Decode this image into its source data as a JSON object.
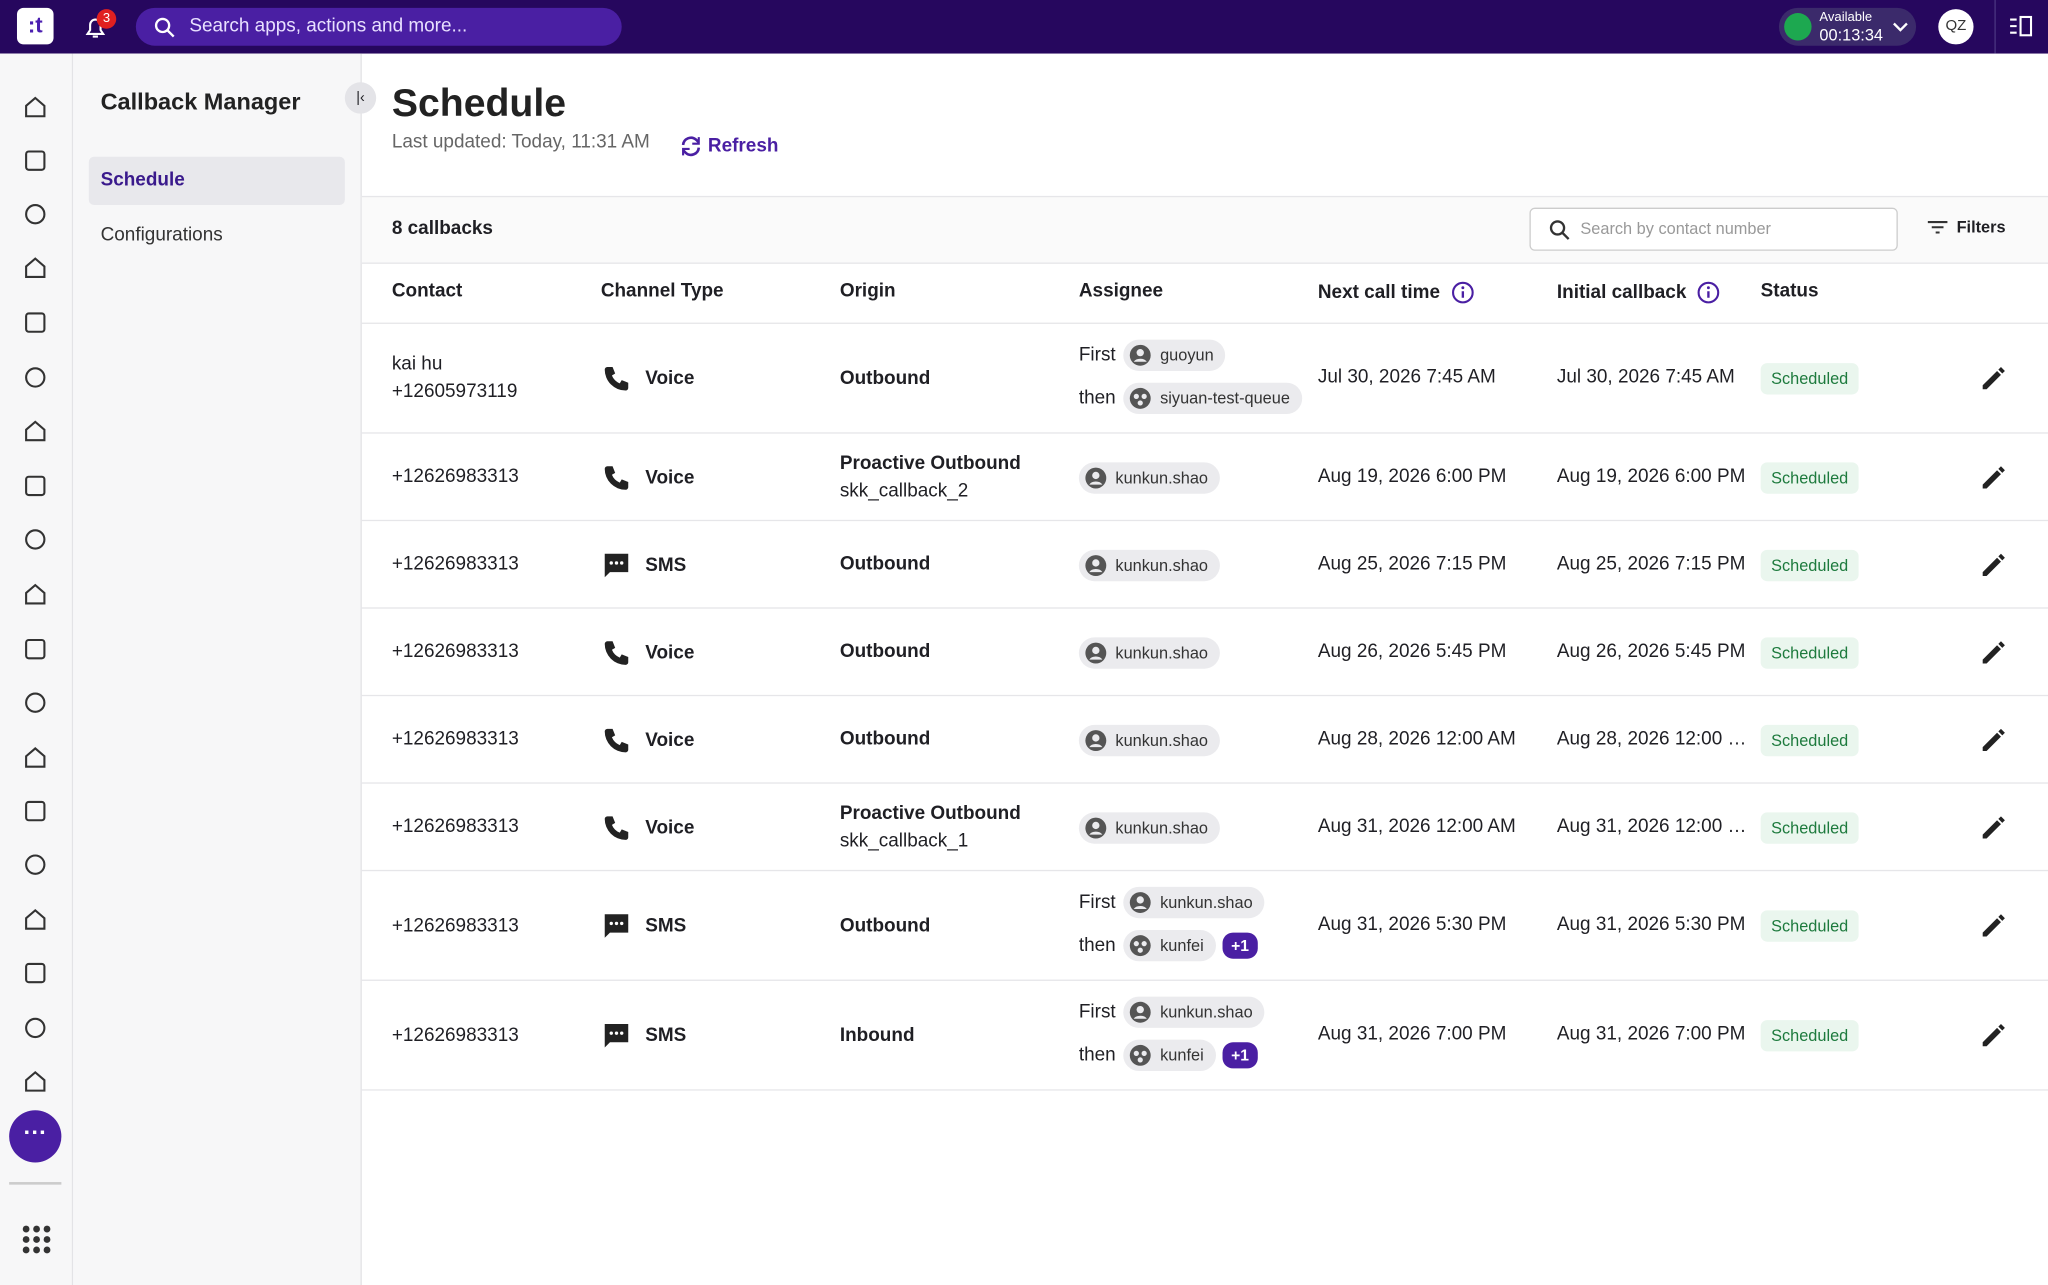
{
  "topbar": {
    "notifications": "3",
    "search_placeholder": "Search apps, actions and more...",
    "status": "Available",
    "timer": "00:13:34",
    "avatar": "QZ"
  },
  "sidebar": {
    "title": "Callback Manager",
    "items": [
      "Schedule",
      "Configurations"
    ]
  },
  "page": {
    "title": "Schedule",
    "last_updated": "Last updated: Today, 11:31 AM",
    "refresh": "Refresh"
  },
  "toolbar": {
    "count": "8 callbacks",
    "search_placeholder": "Search by contact number",
    "filters": "Filters"
  },
  "table": {
    "headers": [
      "Contact",
      "Channel Type",
      "Origin",
      "Assignee",
      "Next call time",
      "Initial callback",
      "Status"
    ],
    "rows": [
      {
        "contact": [
          "kai hu",
          "+12605973119"
        ],
        "channel": "Voice",
        "origin": [
          "Outbound"
        ],
        "assignees": [
          {
            "label": "First",
            "name": "guoyun"
          },
          {
            "label": "then",
            "name": "siyuan-test-queue"
          }
        ],
        "next": "Jul 30, 2026 7:45 AM",
        "initial": "Jul 30, 2026 7:45 AM",
        "status": "Scheduled"
      },
      {
        "contact": [
          "+12626983313"
        ],
        "channel": "Voice",
        "origin": [
          "Proactive Outbound",
          "skk_callback_2"
        ],
        "assignees": [
          {
            "name": "kunkun.shao"
          }
        ],
        "next": "Aug 19, 2026 6:00 PM",
        "initial": "Aug 19, 2026 6:00 PM",
        "status": "Scheduled"
      },
      {
        "contact": [
          "+12626983313"
        ],
        "channel": "SMS",
        "origin": [
          "Outbound"
        ],
        "assignees": [
          {
            "name": "kunkun.shao"
          }
        ],
        "next": "Aug 25, 2026 7:15 PM",
        "initial": "Aug 25, 2026 7:15 PM",
        "status": "Scheduled"
      },
      {
        "contact": [
          "+12626983313"
        ],
        "channel": "Voice",
        "origin": [
          "Outbound"
        ],
        "assignees": [
          {
            "name": "kunkun.shao"
          }
        ],
        "next": "Aug 26, 2026 5:45 PM",
        "initial": "Aug 26, 2026 5:45 PM",
        "status": "Scheduled"
      },
      {
        "contact": [
          "+12626983313"
        ],
        "channel": "Voice",
        "origin": [
          "Outbound"
        ],
        "assignees": [
          {
            "name": "kunkun.shao"
          }
        ],
        "next": "Aug 28, 2026 12:00 AM",
        "initial": "Aug 28, 2026 12:00 …",
        "status": "Scheduled"
      },
      {
        "contact": [
          "+12626983313"
        ],
        "channel": "Voice",
        "origin": [
          "Proactive Outbound",
          "skk_callback_1"
        ],
        "assignees": [
          {
            "name": "kunkun.shao"
          }
        ],
        "next": "Aug 31, 2026 12:00 AM",
        "initial": "Aug 31, 2026 12:00 …",
        "status": "Scheduled"
      },
      {
        "contact": [
          "+12626983313"
        ],
        "channel": "SMS",
        "origin": [
          "Outbound"
        ],
        "assignees": [
          {
            "label": "First",
            "name": "kunkun.shao"
          },
          {
            "label": "then",
            "name": "kunfei",
            "extra": "+1"
          }
        ],
        "next": "Aug 31, 2026 5:30 PM",
        "initial": "Aug 31, 2026 5:30 PM",
        "status": "Scheduled"
      },
      {
        "contact": [
          "+12626983313"
        ],
        "channel": "SMS",
        "origin": [
          "Inbound"
        ],
        "assignees": [
          {
            "label": "First",
            "name": "kunkun.shao"
          },
          {
            "label": "then",
            "name": "kunfei",
            "extra": "+1"
          }
        ],
        "next": "Aug 31, 2026 7:00 PM",
        "initial": "Aug 31, 2026 7:00 PM",
        "status": "Scheduled"
      }
    ]
  }
}
